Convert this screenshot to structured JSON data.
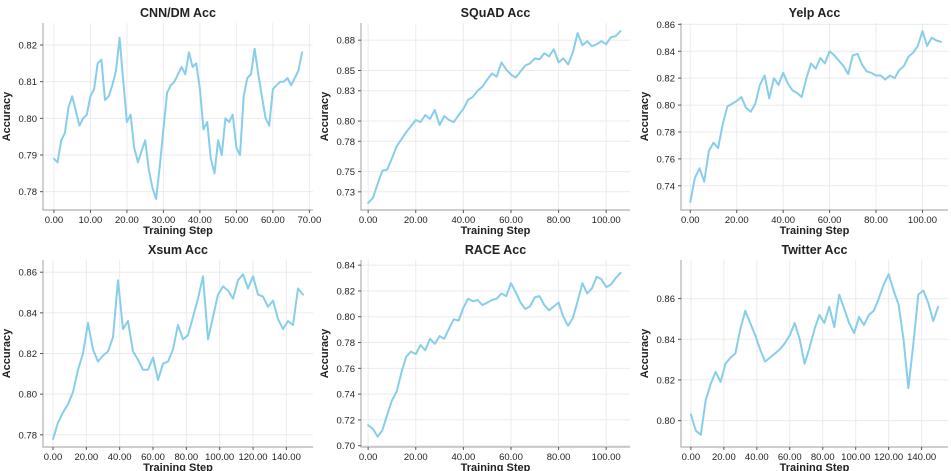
{
  "line_color": "#87CEEB",
  "chart_data": [
    {
      "type": "line",
      "title": "CNN/DM Acc",
      "xlabel": "Training Step",
      "ylabel": "Accuracy",
      "xlim": [
        -3,
        71
      ],
      "ylim": [
        0.775,
        0.826
      ],
      "xticks": [
        0,
        10,
        20,
        30,
        40,
        50,
        60,
        70
      ],
      "xtick_labels": [
        "0.00",
        "10.00",
        "20.00",
        "30.00",
        "40.00",
        "50.00",
        "60.00",
        "70.00"
      ],
      "yticks": [
        0.78,
        0.79,
        0.8,
        0.81,
        0.82
      ],
      "ytick_labels": [
        "0.78",
        "0.79",
        "0.80",
        "0.81",
        "0.82"
      ],
      "series": [
        {
          "x": [
            0,
            1,
            2,
            3,
            4,
            5,
            6,
            7,
            8,
            9,
            10,
            11,
            12,
            13,
            14,
            15,
            16,
            17,
            18,
            19,
            20,
            21,
            22,
            23,
            24,
            25,
            26,
            27,
            28,
            29,
            30,
            31,
            32,
            33,
            34,
            35,
            36,
            37,
            38,
            39,
            40,
            41,
            42,
            43,
            44,
            45,
            46,
            47,
            48,
            49,
            50,
            51,
            52,
            53,
            54,
            55,
            56,
            57,
            58,
            59,
            60,
            61,
            62,
            63,
            64,
            65,
            66,
            67,
            68
          ],
          "y": [
            0.789,
            0.788,
            0.794,
            0.796,
            0.803,
            0.806,
            0.802,
            0.798,
            0.8,
            0.801,
            0.806,
            0.808,
            0.815,
            0.816,
            0.805,
            0.806,
            0.809,
            0.813,
            0.822,
            0.81,
            0.799,
            0.801,
            0.792,
            0.788,
            0.791,
            0.794,
            0.786,
            0.781,
            0.778,
            0.787,
            0.797,
            0.807,
            0.809,
            0.81,
            0.812,
            0.814,
            0.812,
            0.818,
            0.814,
            0.815,
            0.808,
            0.797,
            0.799,
            0.789,
            0.785,
            0.794,
            0.79,
            0.8,
            0.799,
            0.801,
            0.792,
            0.79,
            0.806,
            0.811,
            0.812,
            0.819,
            0.812,
            0.806,
            0.8,
            0.798,
            0.808,
            0.809,
            0.81,
            0.81,
            0.811,
            0.809,
            0.811,
            0.813,
            0.818
          ]
        }
      ]
    },
    {
      "type": "line",
      "title": "SQuAD Acc",
      "xlabel": "Training Step",
      "ylabel": "Accuracy",
      "xlim": [
        -3,
        110
      ],
      "ylim": [
        0.712,
        0.897
      ],
      "xticks": [
        0,
        20,
        40,
        60,
        80,
        100
      ],
      "xtick_labels": [
        "0.00",
        "20.00",
        "40.00",
        "60.00",
        "80.00",
        "100.00"
      ],
      "yticks": [
        0.73,
        0.75,
        0.78,
        0.8,
        0.83,
        0.85,
        0.88
      ],
      "ytick_labels": [
        "0.73",
        "0.75",
        "0.78",
        "0.80",
        "0.83",
        "0.85",
        "0.88"
      ],
      "series": [
        {
          "x": [
            0,
            2,
            4,
            6,
            8,
            10,
            12,
            14,
            16,
            18,
            20,
            22,
            24,
            26,
            28,
            30,
            32,
            34,
            36,
            38,
            40,
            42,
            44,
            46,
            48,
            50,
            52,
            54,
            56,
            58,
            60,
            62,
            64,
            66,
            68,
            70,
            72,
            74,
            76,
            78,
            80,
            82,
            84,
            86,
            88,
            90,
            92,
            94,
            96,
            98,
            100,
            102,
            104,
            106
          ],
          "y": [
            0.719,
            0.724,
            0.738,
            0.751,
            0.752,
            0.763,
            0.775,
            0.782,
            0.789,
            0.795,
            0.801,
            0.799,
            0.806,
            0.802,
            0.811,
            0.796,
            0.805,
            0.801,
            0.799,
            0.806,
            0.812,
            0.821,
            0.824,
            0.83,
            0.834,
            0.841,
            0.847,
            0.844,
            0.858,
            0.851,
            0.846,
            0.843,
            0.849,
            0.855,
            0.857,
            0.862,
            0.861,
            0.867,
            0.864,
            0.871,
            0.858,
            0.862,
            0.856,
            0.868,
            0.887,
            0.875,
            0.879,
            0.874,
            0.876,
            0.879,
            0.876,
            0.883,
            0.884,
            0.889
          ]
        }
      ]
    },
    {
      "type": "line",
      "title": "Yelp Acc",
      "xlabel": "Training Step",
      "ylabel": "Accuracy",
      "xlim": [
        -4,
        111
      ],
      "ylim": [
        0.722,
        0.861
      ],
      "xticks": [
        0,
        20,
        40,
        60,
        80,
        100
      ],
      "xtick_labels": [
        "0.00",
        "20.00",
        "40.00",
        "60.00",
        "80.00",
        "100.00"
      ],
      "yticks": [
        0.74,
        0.76,
        0.78,
        0.8,
        0.82,
        0.84,
        0.86
      ],
      "ytick_labels": [
        "0.74",
        "0.76",
        "0.78",
        "0.80",
        "0.82",
        "0.84",
        "0.86"
      ],
      "series": [
        {
          "x": [
            0,
            2,
            4,
            6,
            8,
            10,
            12,
            14,
            16,
            18,
            20,
            22,
            24,
            26,
            28,
            30,
            32,
            34,
            36,
            38,
            40,
            42,
            44,
            46,
            48,
            50,
            52,
            54,
            56,
            58,
            60,
            62,
            64,
            66,
            68,
            70,
            72,
            74,
            76,
            78,
            80,
            82,
            84,
            86,
            88,
            90,
            92,
            94,
            96,
            98,
            100,
            102,
            104,
            106,
            108
          ],
          "y": [
            0.728,
            0.746,
            0.753,
            0.743,
            0.766,
            0.772,
            0.768,
            0.786,
            0.799,
            0.801,
            0.803,
            0.806,
            0.798,
            0.795,
            0.801,
            0.815,
            0.822,
            0.805,
            0.82,
            0.815,
            0.824,
            0.816,
            0.811,
            0.809,
            0.806,
            0.82,
            0.831,
            0.827,
            0.835,
            0.831,
            0.84,
            0.837,
            0.833,
            0.829,
            0.823,
            0.837,
            0.838,
            0.83,
            0.825,
            0.824,
            0.822,
            0.822,
            0.819,
            0.822,
            0.82,
            0.826,
            0.829,
            0.836,
            0.839,
            0.844,
            0.855,
            0.844,
            0.85,
            0.848,
            0.847
          ]
        }
      ]
    },
    {
      "type": "line",
      "title": "Xsum Acc",
      "xlabel": "Training Step",
      "ylabel": "Accuracy",
      "xlim": [
        -6,
        156
      ],
      "ylim": [
        0.774,
        0.866
      ],
      "xticks": [
        0,
        20,
        40,
        60,
        80,
        100,
        120,
        140
      ],
      "xtick_labels": [
        "0.00",
        "20.00",
        "40.00",
        "60.00",
        "80.00",
        "100.00",
        "120.00",
        "140.00"
      ],
      "yticks": [
        0.78,
        0.8,
        0.82,
        0.84,
        0.86
      ],
      "ytick_labels": [
        "0.78",
        "0.80",
        "0.82",
        "0.84",
        "0.86"
      ],
      "series": [
        {
          "x": [
            0,
            3,
            6,
            9,
            12,
            15,
            18,
            21,
            24,
            27,
            30,
            33,
            36,
            39,
            42,
            45,
            48,
            51,
            54,
            57,
            60,
            63,
            66,
            69,
            72,
            75,
            78,
            81,
            84,
            87,
            90,
            93,
            96,
            99,
            102,
            105,
            108,
            111,
            114,
            117,
            120,
            123,
            126,
            129,
            132,
            135,
            138,
            141,
            144,
            147,
            150
          ],
          "y": [
            0.778,
            0.786,
            0.791,
            0.795,
            0.801,
            0.812,
            0.82,
            0.835,
            0.822,
            0.816,
            0.819,
            0.821,
            0.828,
            0.856,
            0.832,
            0.836,
            0.821,
            0.817,
            0.812,
            0.812,
            0.818,
            0.807,
            0.815,
            0.816,
            0.822,
            0.834,
            0.827,
            0.829,
            0.838,
            0.847,
            0.858,
            0.827,
            0.838,
            0.849,
            0.853,
            0.851,
            0.847,
            0.856,
            0.859,
            0.852,
            0.858,
            0.849,
            0.848,
            0.843,
            0.846,
            0.837,
            0.832,
            0.836,
            0.834,
            0.852,
            0.849
          ]
        }
      ]
    },
    {
      "type": "line",
      "title": "RACE Acc",
      "xlabel": "Training Step",
      "ylabel": "Accuracy",
      "xlim": [
        -3,
        110
      ],
      "ylim": [
        0.699,
        0.844
      ],
      "xticks": [
        0,
        20,
        40,
        60,
        80,
        100
      ],
      "xtick_labels": [
        "0.00",
        "20.00",
        "40.00",
        "60.00",
        "80.00",
        "100.00"
      ],
      "yticks": [
        0.7,
        0.72,
        0.74,
        0.76,
        0.78,
        0.8,
        0.82,
        0.84
      ],
      "ytick_labels": [
        "0.70",
        "0.72",
        "0.74",
        "0.76",
        "0.78",
        "0.80",
        "0.82",
        "0.84"
      ],
      "series": [
        {
          "x": [
            0,
            2,
            4,
            6,
            8,
            10,
            12,
            14,
            16,
            18,
            20,
            22,
            24,
            26,
            28,
            30,
            32,
            34,
            36,
            38,
            40,
            42,
            44,
            46,
            48,
            50,
            52,
            54,
            56,
            58,
            60,
            62,
            64,
            66,
            68,
            70,
            72,
            74,
            76,
            78,
            80,
            82,
            84,
            86,
            88,
            90,
            92,
            94,
            96,
            98,
            100,
            102,
            104,
            106
          ],
          "y": [
            0.716,
            0.713,
            0.707,
            0.712,
            0.724,
            0.735,
            0.742,
            0.757,
            0.769,
            0.773,
            0.771,
            0.778,
            0.774,
            0.783,
            0.779,
            0.785,
            0.783,
            0.791,
            0.798,
            0.797,
            0.807,
            0.814,
            0.812,
            0.813,
            0.809,
            0.811,
            0.813,
            0.814,
            0.818,
            0.816,
            0.826,
            0.819,
            0.811,
            0.806,
            0.808,
            0.815,
            0.816,
            0.809,
            0.805,
            0.808,
            0.811,
            0.8,
            0.793,
            0.799,
            0.812,
            0.826,
            0.818,
            0.822,
            0.831,
            0.829,
            0.823,
            0.825,
            0.83,
            0.834
          ]
        }
      ]
    },
    {
      "type": "line",
      "title": "Twitter Acc",
      "xlabel": "Training Step",
      "ylabel": "Accuracy",
      "xlim": [
        -6,
        156
      ],
      "ylim": [
        0.787,
        0.879
      ],
      "xticks": [
        0,
        20,
        40,
        60,
        80,
        100,
        120,
        140
      ],
      "xtick_labels": [
        "0.00",
        "20.00",
        "40.00",
        "60.00",
        "80.00",
        "100.00",
        "120.00",
        "140.00"
      ],
      "yticks": [
        0.8,
        0.82,
        0.84,
        0.86
      ],
      "ytick_labels": [
        "0.80",
        "0.82",
        "0.84",
        "0.86"
      ],
      "series": [
        {
          "x": [
            0,
            3,
            6,
            9,
            12,
            15,
            18,
            21,
            24,
            27,
            30,
            33,
            36,
            39,
            42,
            45,
            48,
            51,
            54,
            57,
            60,
            63,
            66,
            69,
            72,
            75,
            78,
            81,
            84,
            87,
            90,
            93,
            96,
            99,
            102,
            105,
            108,
            111,
            114,
            117,
            120,
            123,
            126,
            129,
            132,
            135,
            138,
            141,
            144,
            147,
            150
          ],
          "y": [
            0.803,
            0.795,
            0.793,
            0.81,
            0.818,
            0.824,
            0.819,
            0.828,
            0.831,
            0.833,
            0.845,
            0.854,
            0.848,
            0.842,
            0.835,
            0.829,
            0.831,
            0.833,
            0.835,
            0.838,
            0.842,
            0.848,
            0.84,
            0.828,
            0.836,
            0.845,
            0.852,
            0.848,
            0.856,
            0.846,
            0.862,
            0.855,
            0.848,
            0.843,
            0.851,
            0.847,
            0.852,
            0.854,
            0.86,
            0.867,
            0.872,
            0.864,
            0.857,
            0.84,
            0.816,
            0.838,
            0.862,
            0.864,
            0.858,
            0.849,
            0.856
          ]
        }
      ]
    }
  ]
}
